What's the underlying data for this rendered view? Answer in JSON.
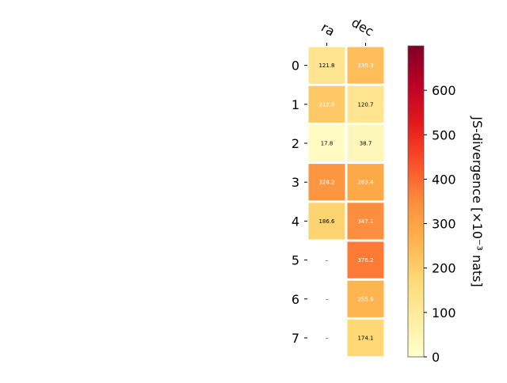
{
  "chart_data": {
    "type": "heatmap",
    "columns": [
      "ra",
      "dec"
    ],
    "rows": [
      "0",
      "1",
      "2",
      "3",
      "4",
      "5",
      "6",
      "7"
    ],
    "values": [
      [
        121.8,
        235.3
      ],
      [
        212.9,
        120.7
      ],
      [
        17.8,
        38.7
      ],
      [
        328.2,
        283.4
      ],
      [
        186.6,
        347.1
      ],
      [
        null,
        376.2
      ],
      [
        null,
        255.9
      ],
      [
        null,
        174.1
      ]
    ],
    "cell_labels": [
      [
        "121.8",
        "235.3"
      ],
      [
        "212.9",
        "120.7"
      ],
      [
        "17.8",
        "38.7"
      ],
      [
        "328.2",
        "283.4"
      ],
      [
        "186.6",
        "347.1"
      ],
      [
        "–",
        "376.2"
      ],
      [
        "–",
        "255.9"
      ],
      [
        "–",
        "174.1"
      ]
    ],
    "colorbar": {
      "label": "JS-divergence [×10⁻³ nats]",
      "range": [
        0,
        700
      ],
      "ticks": [
        "0",
        "100",
        "200",
        "300",
        "400",
        "500",
        "600"
      ],
      "colormap": "YlOrRd"
    },
    "colormap_stops": [
      "#ffffcc",
      "#ffeda0",
      "#fed976",
      "#feb24c",
      "#fd8d3c",
      "#fc4e2a",
      "#e31a1c",
      "#bd0026",
      "#800026"
    ]
  }
}
